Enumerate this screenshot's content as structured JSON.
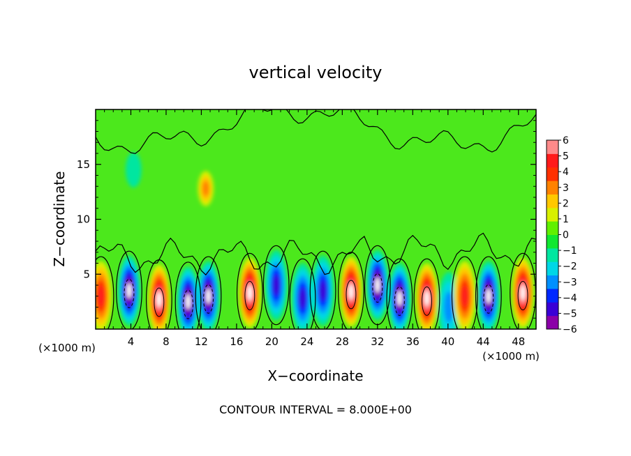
{
  "chart_data": {
    "type": "heatmap",
    "title": "vertical velocity",
    "xlabel": "X−coordinate",
    "ylabel": "Z−coordinate",
    "x_unit": "(×1000 m)",
    "y_unit": "(×1000 m)",
    "xlim": [
      0,
      50
    ],
    "ylim": [
      0,
      20
    ],
    "xticks": [
      "4",
      "8",
      "12",
      "16",
      "20",
      "24",
      "28",
      "32",
      "36",
      "40",
      "44",
      "48"
    ],
    "yticks": [
      "5",
      "10",
      "15"
    ],
    "colorbar": {
      "ticks": [
        "6",
        "5",
        "4",
        "3",
        "2",
        "1",
        "0",
        "−1",
        "−2",
        "−3",
        "−4",
        "−5",
        "−6"
      ],
      "range": [
        -6,
        6
      ],
      "colors": [
        "#8b00a8",
        "#3a00d6",
        "#0028ff",
        "#0090ff",
        "#00d7e6",
        "#00e6a0",
        "#10e830",
        "#60f000",
        "#d8f000",
        "#ffc800",
        "#ff8200",
        "#ff3000",
        "#ff1a1a",
        "#ff8a8a"
      ]
    },
    "annotation": "CONTOUR INTERVAL = 8.000E+00",
    "cells": [
      {
        "x": 0.6,
        "z": 3.0,
        "value": 5.0
      },
      {
        "x": 3.8,
        "z": 3.5,
        "value": -9.0
      },
      {
        "x": 7.2,
        "z": 2.7,
        "value": 9.0
      },
      {
        "x": 10.5,
        "z": 2.5,
        "value": -9.0
      },
      {
        "x": 12.8,
        "z": 3.0,
        "value": -9.0
      },
      {
        "x": 17.5,
        "z": 3.3,
        "value": 9.0
      },
      {
        "x": 20.5,
        "z": 4.0,
        "value": -5.5
      },
      {
        "x": 23.5,
        "z": 2.8,
        "value": -5.0
      },
      {
        "x": 25.8,
        "z": 3.5,
        "value": -5.0
      },
      {
        "x": 29.0,
        "z": 3.4,
        "value": 9.0
      },
      {
        "x": 32.0,
        "z": 4.0,
        "value": -9.0
      },
      {
        "x": 34.5,
        "z": 2.8,
        "value": -9.0
      },
      {
        "x": 37.6,
        "z": 2.8,
        "value": 9.0
      },
      {
        "x": 40.1,
        "z": 2.0,
        "value": -3.0
      },
      {
        "x": 41.9,
        "z": 3.0,
        "value": 5.0
      },
      {
        "x": 44.6,
        "z": 3.0,
        "value": -9.0
      },
      {
        "x": 48.5,
        "z": 3.3,
        "value": 9.0
      },
      {
        "x": 12.5,
        "z": 12.8,
        "value": 3.5
      },
      {
        "x": 4.3,
        "z": 14.5,
        "value": -1.5
      },
      {
        "x": 22.0,
        "z": 13.0,
        "value": 0.8
      },
      {
        "x": 40.0,
        "z": 15.0,
        "value": 0.6
      }
    ]
  }
}
